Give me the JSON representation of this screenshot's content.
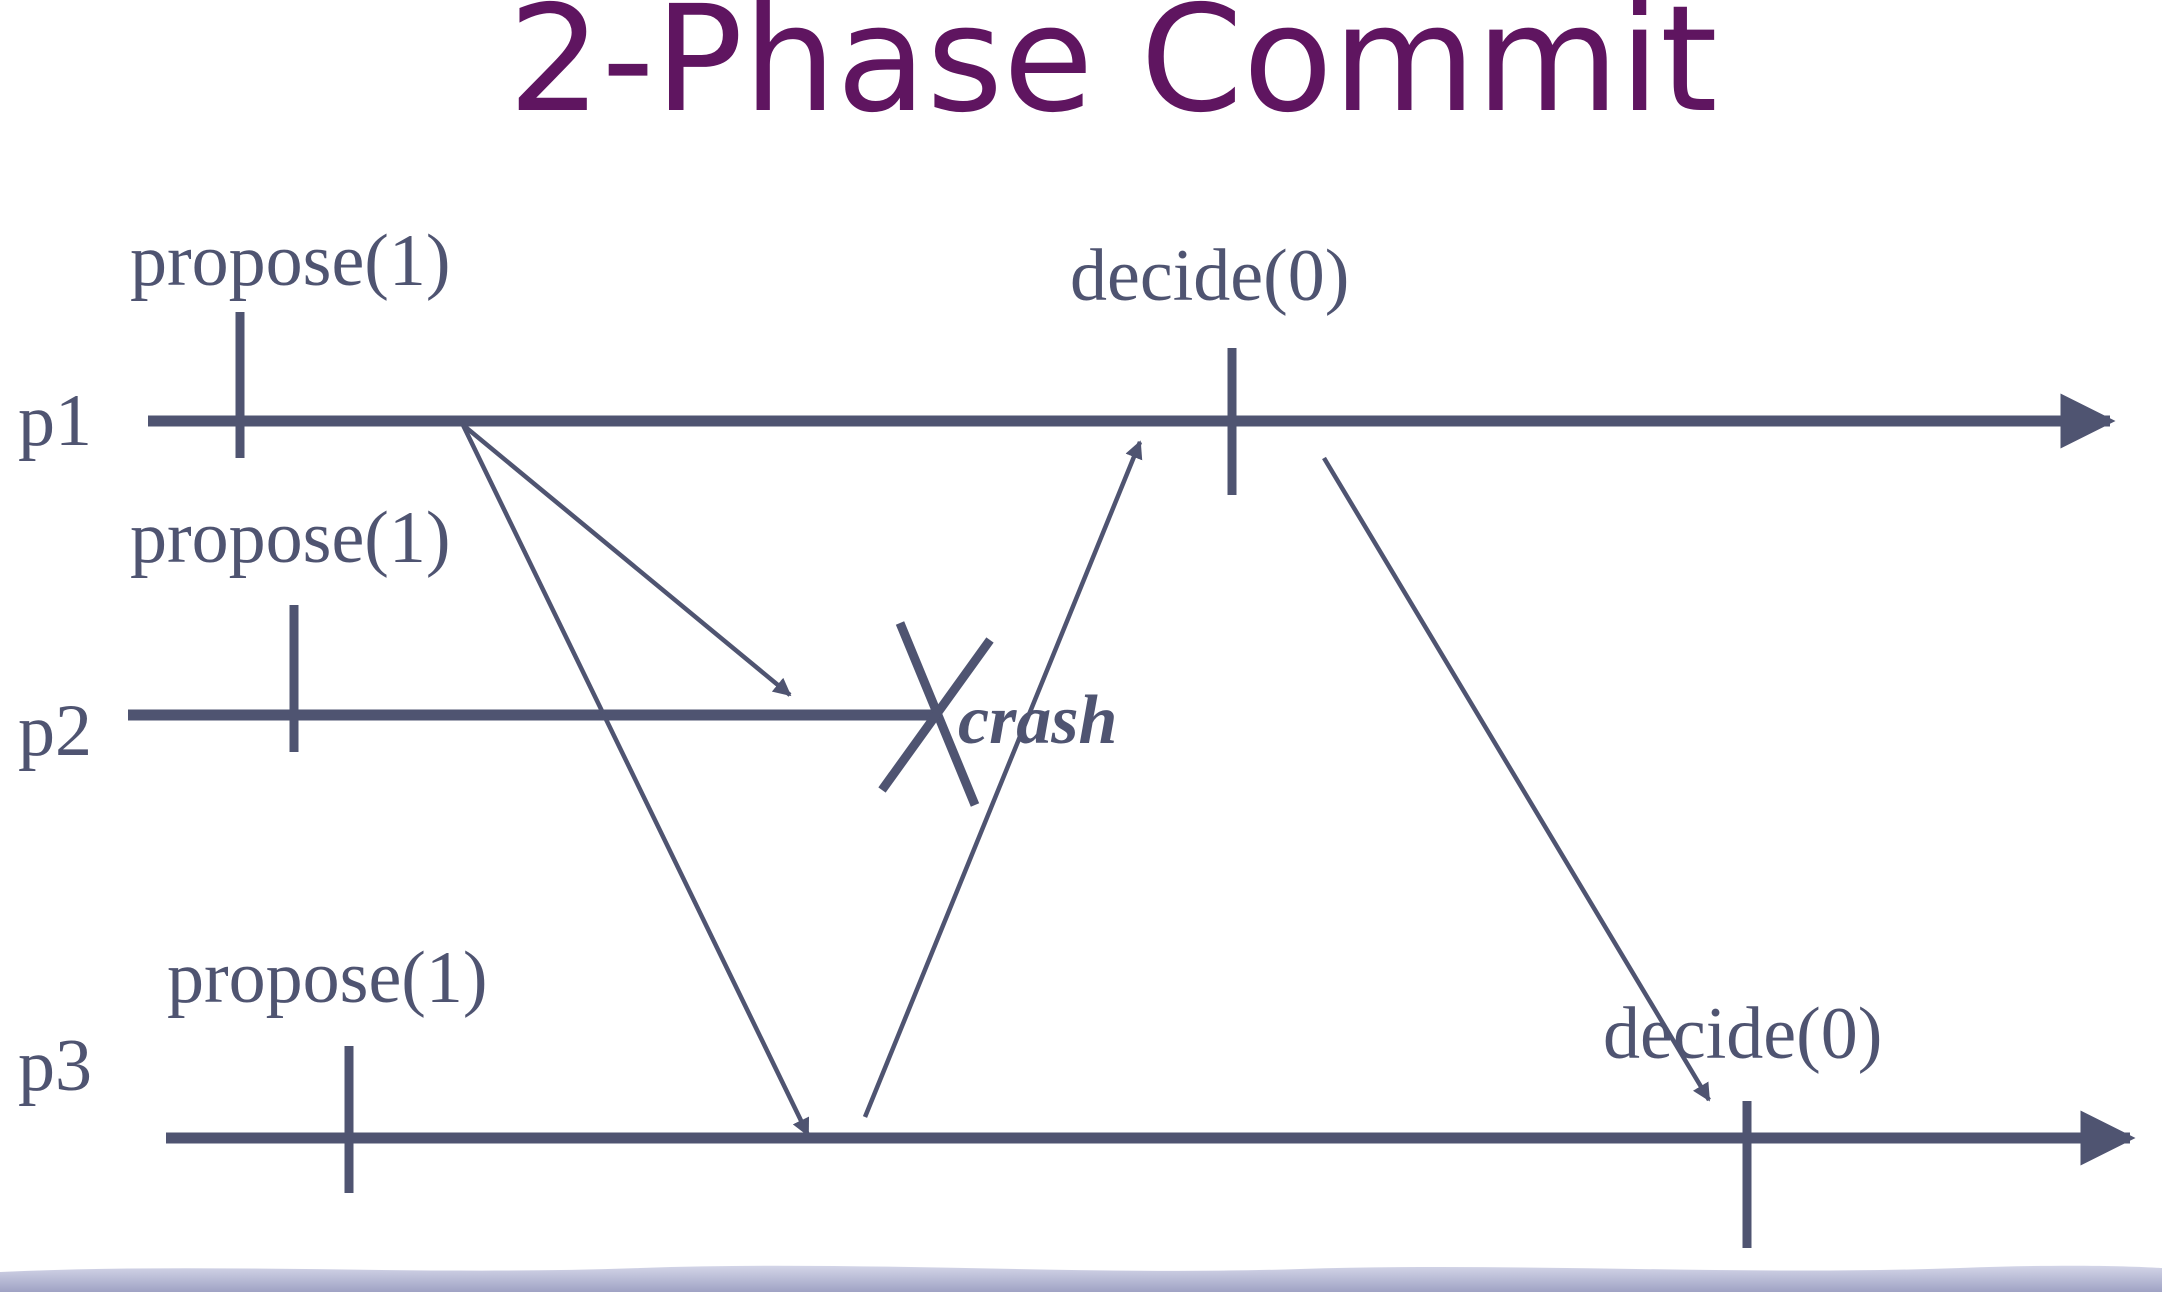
{
  "title": "2-Phase Commit",
  "processes": [
    {
      "label": "p1",
      "event_labels": [
        "propose(1)",
        "decide(0)"
      ]
    },
    {
      "label": "p2",
      "event_labels": [
        "propose(1)"
      ],
      "annotation": "crash"
    },
    {
      "label": "p3",
      "event_labels": [
        "propose(1)",
        "decide(0)"
      ]
    }
  ],
  "colors": {
    "title": "#5f1560",
    "line": "#4f5471",
    "footer": "#b4b6d2"
  }
}
